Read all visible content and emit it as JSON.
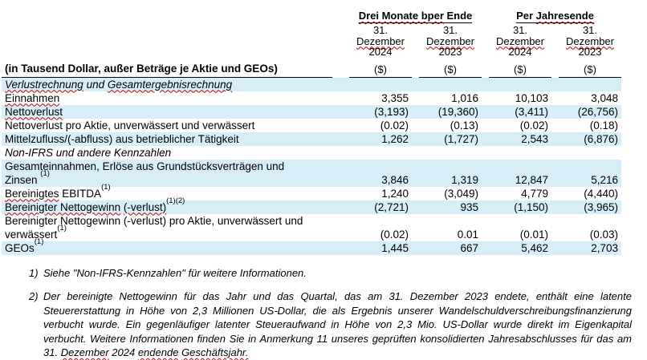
{
  "colors": {
    "row_highlight": "#D7EEF8",
    "squiggle_red": "#C00000",
    "rule_black": "#000000",
    "text": "#000000",
    "background": "#FFFFFF"
  },
  "header": {
    "group_quarter_sq": "Drei Monate bper",
    "group_quarter_rest": " Ende",
    "group_year_rest": "Per ",
    "group_year_sq": "Jahresende",
    "date_prefix": "31. ",
    "date_month": "Dezember",
    "date_years": [
      "2024",
      "2023",
      "2024",
      "2023"
    ],
    "unit": "($)",
    "row_label_header": "(in Tausend Dollar, außer Beträge je Aktie und GEOs)"
  },
  "table": {
    "rows": [
      {
        "sq1": "Verlustrechnung",
        "plain1": " und ",
        "sq2": "Gesamtergebnisrechnung"
      },
      {
        "sq1": "Einnahmen",
        "values": [
          "3,355",
          "1,016",
          "10,103",
          "3,048"
        ]
      },
      {
        "sq1": "Nettoverlust",
        "values": [
          "(3,193)",
          "(19,360)",
          "(3,411)",
          "(26,756)"
        ]
      },
      {
        "plain1": "Nettoverlust pro Aktie, unverwässert und verwässert",
        "values": [
          "(0.02)",
          "(0.13)",
          "(0.02)",
          "(0.18)"
        ]
      },
      {
        "plain1": "Mittelzufluss/(-abfluss) aus betrieblicher Tätigkeit",
        "values": [
          "1,262",
          "(1,727)",
          "2,543",
          "(6,876)"
        ]
      },
      {
        "plain1": "Non-IFRS und andere Kennzahlen"
      },
      {
        "line1": "Gesamteinnahmen, Erlöse aus Grundstücksverträgen und",
        "line2": "Zinsen ",
        "sup": "(1)",
        "values": [
          "3,846",
          "1,319",
          "12,847",
          "5,216"
        ]
      },
      {
        "sq1": "Bereinigtes",
        "plain1": " EBITDA",
        "sup": "(1)",
        "values": [
          "1,240",
          "(3,049)",
          "4,779",
          "(4,440)"
        ]
      },
      {
        "sq1": "Bereinigter Nettogewinn",
        "plain1": " ",
        "sq2": "(-verlust)",
        "sup": "(1)(2)",
        "values": [
          "(2,721)",
          "935",
          "(1,150)",
          "(3,965)"
        ]
      },
      {
        "line1": "Bereinigter Nettogewinn (-verlust) pro Aktie, unverwässert und",
        "line2": "verwässert",
        "sup": "(1)",
        "values": [
          "(0.02)",
          "0.01",
          "(0.01)",
          "(0.03)"
        ]
      },
      {
        "plain1": "GEOs",
        "sup": "(1)",
        "values": [
          "1,445",
          "667",
          "5,462",
          "2,703"
        ]
      }
    ]
  },
  "footnotes": [
    {
      "num": "1)",
      "text": "Siehe \"Non-IFRS-Kennzahlen\" für weitere Informationen."
    },
    {
      "num": "2)",
      "text_main": "Der bereinigte Nettogewinn für das Jahr und das Quartal, das am 31. Dezember 2023 endete, enthält eine latente Steuererstattung in Höhe von 2,3 Millionen US-Dollar, die als Ergebnis unserer Wandelschuldverschreibungsfinanzierung verbucht wurde. Ein gegenläufiger latenter Steueraufwand in Höhe von 2,3 Mio. US-Dollar wurde direkt im Eigenkapital verbucht. Weitere Informationen finden Sie in Anmerkung 11 unseres geprüften konsolidierten Jahresabschlusses für das am 31. ",
      "sq1": "Dezember",
      "mid1": " 2024 ",
      "sq2": "endende",
      "mid2": " ",
      "sq3": "Geschäftsjahr."
    }
  ]
}
